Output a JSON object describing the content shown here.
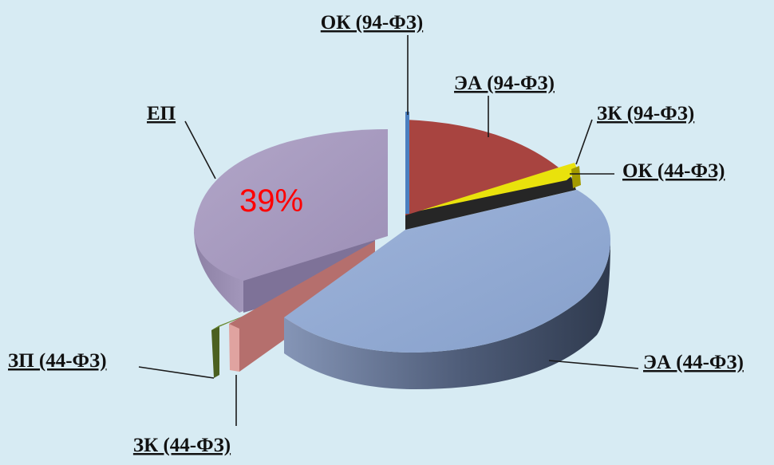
{
  "chart_data": {
    "type": "pie",
    "style": "3d-exploded",
    "categories": [
      "ОК (94-ФЗ)",
      "ЭА (94-ФЗ)",
      "ЗК (94-ФЗ)",
      "ОК (44-ФЗ)",
      "ЭА (44-ФЗ)",
      "ЗК (44-ФЗ)",
      "ЗП (44-ФЗ)",
      "ЕП"
    ],
    "values": [
      0.5,
      15,
      0.5,
      1.5,
      42,
      1.5,
      0.8,
      39
    ],
    "value_unit": "%",
    "data_labels": [
      {
        "category": "ЕП",
        "text": "39%"
      }
    ],
    "colors": [
      "#4a7fc0",
      "#a84440",
      "#e9e20c",
      "#262626",
      "#8fa7cf",
      "#d89492",
      "#556b2a",
      "#a698bf"
    ],
    "title": "",
    "legend": "none (labels with leader lines)"
  }
}
